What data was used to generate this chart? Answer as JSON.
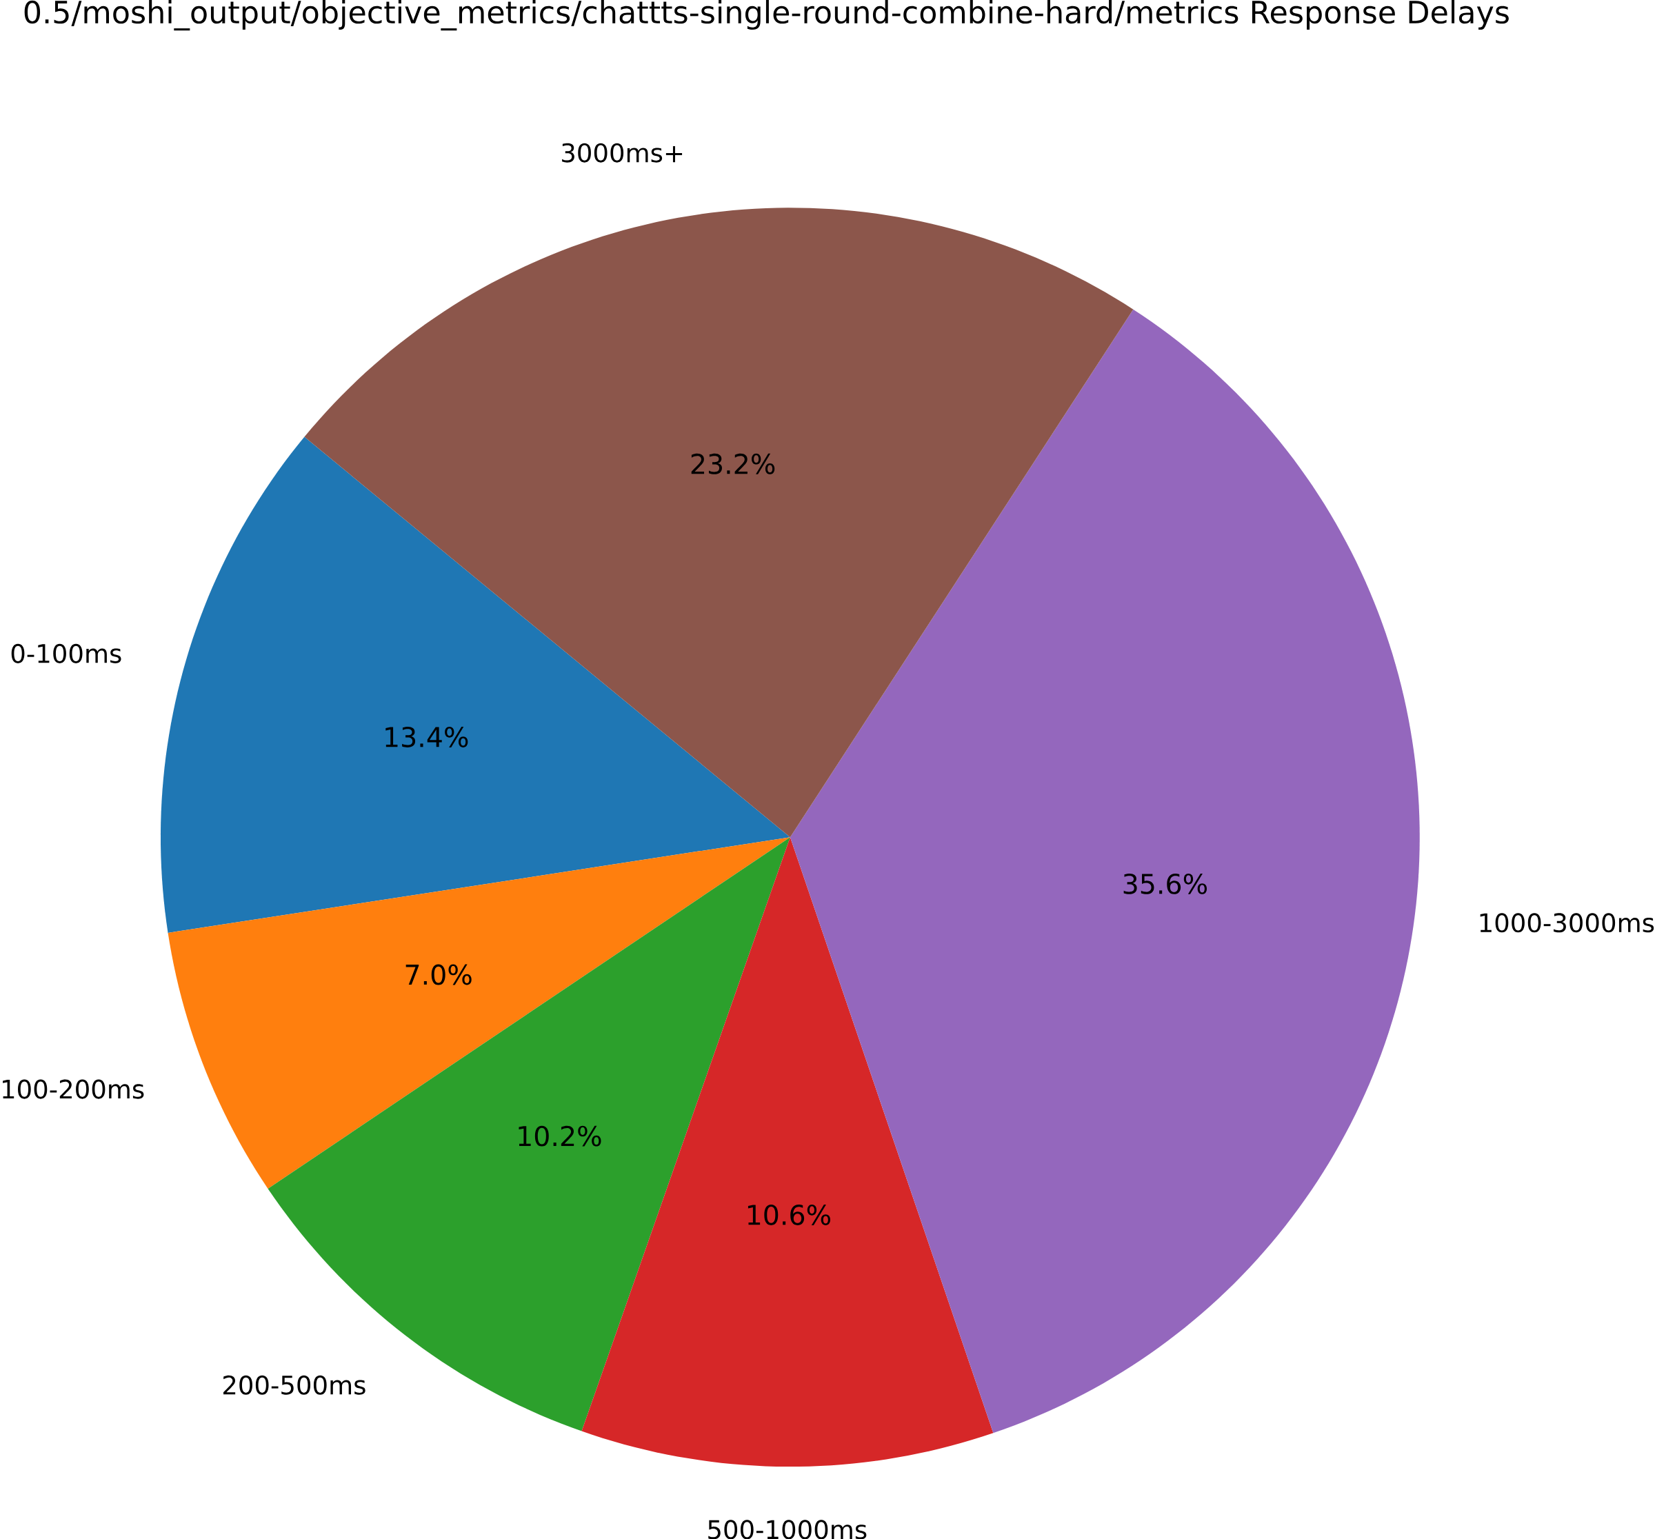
{
  "chart_data": {
    "type": "pie",
    "title": "0.5/moshi_output/objective_metrics/chattts-single-round-combine-hard/metrics Response Delays",
    "categories": [
      "0-100ms",
      "100-200ms",
      "200-500ms",
      "500-1000ms",
      "1000-3000ms",
      "3000ms+"
    ],
    "values": [
      13.4,
      7.0,
      10.2,
      10.6,
      35.6,
      23.2
    ],
    "value_labels": [
      "13.4%",
      "7.0%",
      "10.2%",
      "10.6%",
      "35.6%",
      "23.2%"
    ],
    "colors": [
      "#1f77b4",
      "#ff7f0e",
      "#2ca02c",
      "#d62728",
      "#9467bd",
      "#8c564b"
    ]
  }
}
